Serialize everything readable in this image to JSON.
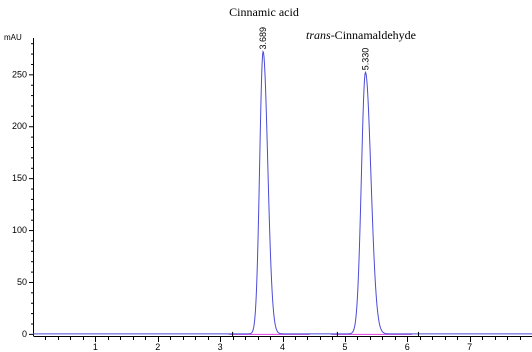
{
  "chart_data": {
    "type": "line",
    "title": "Cinnamic  acid",
    "ylabel": "mAU",
    "xlabel": "",
    "xlim": [
      0,
      8
    ],
    "ylim": [
      -3,
      285
    ],
    "x_ticks": [
      1,
      2,
      3,
      4,
      5,
      6,
      7
    ],
    "y_ticks": [
      0,
      50,
      100,
      150,
      200,
      250
    ],
    "grid": false,
    "annotations": [
      {
        "text_italic": "trans",
        "text": "-Cinnamaldehyde"
      }
    ],
    "peaks": [
      {
        "label": "3.689",
        "x": 3.689,
        "height": 272,
        "width": 0.055
      },
      {
        "label": "5.330",
        "x": 5.33,
        "height": 252,
        "width": 0.065
      }
    ],
    "series": [
      {
        "color": "#4b4bd6"
      },
      {
        "color": "#e040e0"
      }
    ]
  }
}
